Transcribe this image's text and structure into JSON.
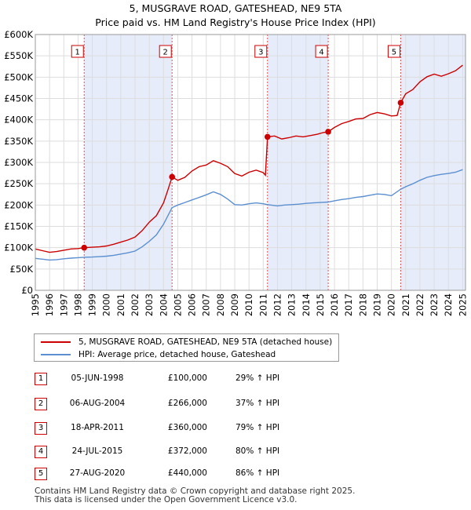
{
  "chart_data": {
    "type": "line",
    "title": "5, MUSGRAVE ROAD, GATESHEAD, NE9 5TA",
    "subtitle": "Price paid vs. HM Land Registry's House Price Index (HPI)",
    "xlim": [
      1995,
      2025.2
    ],
    "ylim": [
      0,
      600000
    ],
    "x_ticks": [
      1995,
      1996,
      1997,
      1998,
      1999,
      2000,
      2001,
      2002,
      2003,
      2004,
      2005,
      2006,
      2007,
      2008,
      2009,
      2010,
      2011,
      2012,
      2013,
      2014,
      2015,
      2016,
      2017,
      2018,
      2019,
      2020,
      2021,
      2022,
      2023,
      2024,
      2025
    ],
    "y_ticks": [
      {
        "value": 0,
        "label": "£0"
      },
      {
        "value": 50000,
        "label": "£50K"
      },
      {
        "value": 100000,
        "label": "£100K"
      },
      {
        "value": 150000,
        "label": "£150K"
      },
      {
        "value": 200000,
        "label": "£200K"
      },
      {
        "value": 250000,
        "label": "£250K"
      },
      {
        "value": 300000,
        "label": "£300K"
      },
      {
        "value": 350000,
        "label": "£350K"
      },
      {
        "value": 400000,
        "label": "£400K"
      },
      {
        "value": 450000,
        "label": "£450K"
      },
      {
        "value": 500000,
        "label": "£500K"
      },
      {
        "value": 550000,
        "label": "£550K"
      },
      {
        "value": 600000,
        "label": "£600K"
      }
    ],
    "grid": true,
    "series": [
      {
        "name": "5, MUSGRAVE ROAD, GATESHEAD, NE9 5TA (detached house)",
        "color": "#cc0000",
        "points": [
          [
            1995.0,
            97000
          ],
          [
            1995.5,
            93000
          ],
          [
            1996.0,
            89000
          ],
          [
            1996.5,
            91000
          ],
          [
            1997.0,
            94000
          ],
          [
            1997.5,
            97000
          ],
          [
            1998.0,
            98000
          ],
          [
            1998.43,
            100000
          ],
          [
            1999.0,
            101000
          ],
          [
            1999.5,
            102000
          ],
          [
            2000.0,
            104000
          ],
          [
            2000.5,
            108000
          ],
          [
            2001.0,
            113000
          ],
          [
            2001.5,
            118000
          ],
          [
            2002.0,
            125000
          ],
          [
            2002.5,
            140000
          ],
          [
            2003.0,
            160000
          ],
          [
            2003.5,
            175000
          ],
          [
            2004.0,
            205000
          ],
          [
            2004.3,
            235000
          ],
          [
            2004.6,
            266000
          ],
          [
            2005.0,
            258000
          ],
          [
            2005.5,
            265000
          ],
          [
            2006.0,
            280000
          ],
          [
            2006.5,
            290000
          ],
          [
            2007.0,
            294000
          ],
          [
            2007.5,
            304000
          ],
          [
            2008.0,
            298000
          ],
          [
            2008.5,
            290000
          ],
          [
            2009.0,
            274000
          ],
          [
            2009.5,
            268000
          ],
          [
            2010.0,
            277000
          ],
          [
            2010.5,
            282000
          ],
          [
            2011.0,
            276000
          ],
          [
            2011.15,
            270000
          ],
          [
            2011.3,
            360000
          ],
          [
            2011.8,
            362000
          ],
          [
            2012.3,
            355000
          ],
          [
            2012.8,
            358000
          ],
          [
            2013.3,
            362000
          ],
          [
            2013.8,
            360000
          ],
          [
            2014.3,
            363000
          ],
          [
            2014.8,
            366000
          ],
          [
            2015.2,
            370000
          ],
          [
            2015.56,
            372000
          ],
          [
            2016.0,
            382000
          ],
          [
            2016.5,
            391000
          ],
          [
            2017.0,
            396000
          ],
          [
            2017.5,
            402000
          ],
          [
            2018.0,
            403000
          ],
          [
            2018.5,
            412000
          ],
          [
            2019.0,
            417000
          ],
          [
            2019.5,
            414000
          ],
          [
            2020.0,
            409000
          ],
          [
            2020.4,
            410000
          ],
          [
            2020.65,
            440000
          ],
          [
            2021.0,
            461000
          ],
          [
            2021.5,
            471000
          ],
          [
            2022.0,
            489000
          ],
          [
            2022.5,
            501000
          ],
          [
            2023.0,
            507000
          ],
          [
            2023.5,
            502000
          ],
          [
            2024.0,
            508000
          ],
          [
            2024.5,
            515000
          ],
          [
            2025.0,
            528000
          ]
        ]
      },
      {
        "name": "HPI: Average price, detached house, Gateshead",
        "color": "#5b8fd0",
        "points": [
          [
            1995.0,
            75000
          ],
          [
            1995.5,
            73000
          ],
          [
            1996.0,
            71000
          ],
          [
            1996.5,
            72000
          ],
          [
            1997.0,
            74000
          ],
          [
            1997.5,
            75500
          ],
          [
            1998.0,
            76500
          ],
          [
            1998.43,
            77500
          ],
          [
            1999.0,
            78000
          ],
          [
            1999.5,
            79000
          ],
          [
            2000.0,
            80000
          ],
          [
            2000.5,
            82000
          ],
          [
            2001.0,
            85000
          ],
          [
            2001.5,
            88000
          ],
          [
            2002.0,
            92000
          ],
          [
            2002.5,
            102000
          ],
          [
            2003.0,
            115000
          ],
          [
            2003.5,
            130000
          ],
          [
            2004.0,
            155000
          ],
          [
            2004.6,
            194000
          ],
          [
            2005.0,
            200000
          ],
          [
            2005.5,
            206000
          ],
          [
            2006.0,
            212000
          ],
          [
            2006.5,
            218000
          ],
          [
            2007.0,
            224000
          ],
          [
            2007.5,
            231000
          ],
          [
            2008.0,
            225000
          ],
          [
            2008.5,
            214000
          ],
          [
            2009.0,
            201000
          ],
          [
            2009.5,
            200000
          ],
          [
            2010.0,
            203000
          ],
          [
            2010.5,
            205000
          ],
          [
            2011.0,
            203000
          ],
          [
            2011.3,
            201000
          ],
          [
            2012.0,
            198000
          ],
          [
            2012.5,
            200000
          ],
          [
            2013.0,
            201000
          ],
          [
            2013.5,
            202000
          ],
          [
            2014.0,
            204000
          ],
          [
            2014.5,
            205000
          ],
          [
            2015.0,
            206000
          ],
          [
            2015.56,
            207000
          ],
          [
            2016.0,
            210000
          ],
          [
            2016.5,
            213000
          ],
          [
            2017.0,
            215000
          ],
          [
            2017.5,
            218000
          ],
          [
            2018.0,
            220000
          ],
          [
            2018.5,
            223000
          ],
          [
            2019.0,
            226000
          ],
          [
            2019.5,
            225000
          ],
          [
            2020.0,
            222000
          ],
          [
            2020.65,
            237000
          ],
          [
            2021.0,
            243000
          ],
          [
            2021.5,
            250000
          ],
          [
            2022.0,
            258000
          ],
          [
            2022.5,
            265000
          ],
          [
            2023.0,
            269000
          ],
          [
            2023.5,
            272000
          ],
          [
            2024.0,
            274000
          ],
          [
            2024.5,
            277000
          ],
          [
            2025.0,
            283000
          ]
        ]
      }
    ],
    "sales": [
      {
        "num": "1",
        "x": 1998.43,
        "price": 100000,
        "date": "05-JUN-1998",
        "price_label": "£100,000",
        "hpi": "29% ↑ HPI"
      },
      {
        "num": "2",
        "x": 2004.6,
        "price": 266000,
        "date": "06-AUG-2004",
        "price_label": "£266,000",
        "hpi": "37% ↑ HPI"
      },
      {
        "num": "3",
        "x": 2011.3,
        "price": 360000,
        "date": "18-APR-2011",
        "price_label": "£360,000",
        "hpi": "79% ↑ HPI"
      },
      {
        "num": "4",
        "x": 2015.56,
        "price": 372000,
        "date": "24-JUL-2015",
        "price_label": "£372,000",
        "hpi": "80% ↑ HPI"
      },
      {
        "num": "5",
        "x": 2020.65,
        "price": 440000,
        "date": "27-AUG-2020",
        "price_label": "£440,000",
        "hpi": "86% ↑ HPI"
      }
    ],
    "shaded_periods": [
      [
        1998.43,
        2004.6
      ],
      [
        2011.3,
        2015.56
      ],
      [
        2020.65,
        2025.2
      ]
    ]
  },
  "legend": {
    "property_label": "5, MUSGRAVE ROAD, GATESHEAD, NE9 5TA (detached house)",
    "hpi_label": "HPI: Average price, detached house, Gateshead"
  },
  "footer": {
    "line1": "Contains HM Land Registry data © Crown copyright and database right 2025.",
    "line2": "This data is licensed under the Open Government Licence v3.0."
  }
}
